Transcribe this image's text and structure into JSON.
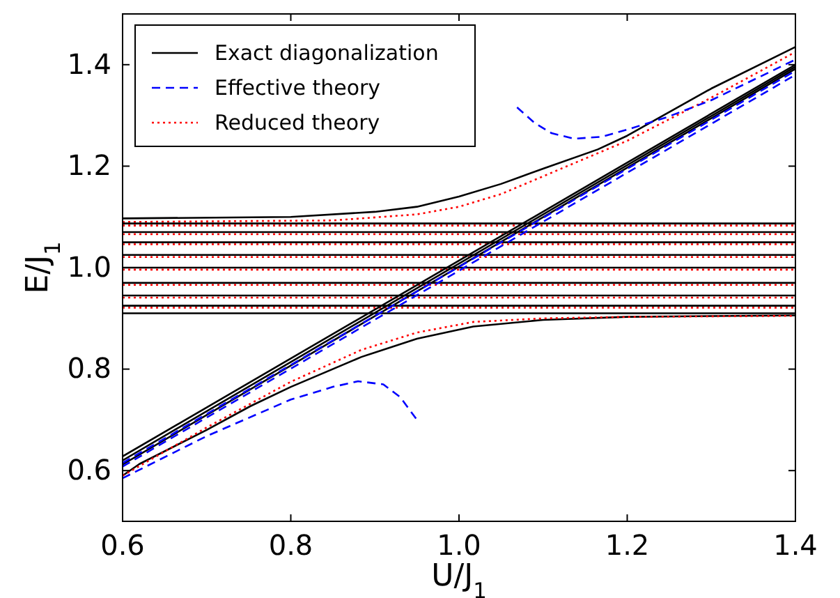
{
  "chart_data": {
    "type": "line",
    "xlabel": "U/J$_{1}$",
    "ylabel": "E/J$_{1}$",
    "xlim": [
      0.6,
      1.4
    ],
    "ylim": [
      0.5,
      1.5
    ],
    "xticks": [
      0.6,
      0.8,
      {
        "value": 1.0,
        "label": "1.0"
      },
      1.2,
      1.4
    ],
    "yticks": [
      0.6,
      0.8,
      {
        "value": 1.0,
        "label": "1.0"
      },
      1.2,
      1.4
    ],
    "legend": "top left",
    "grid": false,
    "series": [
      {
        "name": "Exact diagonalization",
        "color": "#000000",
        "line_style": "solid",
        "x": [
          0.6,
          0.8,
          0.9,
          0.95,
          1.0,
          1.05,
          1.1,
          1.165,
          1.2,
          1.3,
          1.4
        ],
        "values": [
          1.097,
          1.1,
          1.11,
          1.12,
          1.14,
          1.165,
          1.195,
          1.233,
          1.26,
          1.353,
          1.435
        ]
      },
      {
        "name": "Effective theory",
        "color": "#0000ff",
        "line_style": "dashed",
        "x": [
          0.6,
          0.7,
          0.8,
          0.85,
          0.88,
          0.91,
          0.93,
          0.95
        ],
        "values": [
          0.585,
          0.668,
          0.74,
          0.765,
          0.776,
          0.77,
          0.745,
          0.7
        ]
      },
      {
        "name": "Reduced theory",
        "color": "#ff0000",
        "line_style": "dotted",
        "x": [
          0.6,
          0.85,
          0.95,
          1.0,
          1.05,
          1.1,
          1.2,
          1.3,
          1.4
        ],
        "values": [
          1.09,
          1.093,
          1.105,
          1.12,
          1.145,
          1.18,
          1.25,
          1.335,
          1.425
        ]
      },
      {
        "color": "#000000",
        "line_style": "solid",
        "x": [
          0.6,
          0.62,
          0.7,
          0.752,
          0.8,
          0.884,
          0.95,
          1.017,
          1.1,
          1.2,
          1.4
        ],
        "values": [
          0.59,
          0.613,
          0.68,
          0.727,
          0.765,
          0.824,
          0.86,
          0.884,
          0.897,
          0.903,
          0.906
        ]
      },
      {
        "color": "#ff0000",
        "line_style": "dotted",
        "x": [
          0.6,
          0.7,
          0.8,
          0.884,
          0.95,
          1.017,
          1.1,
          1.2,
          1.4
        ],
        "values": [
          0.59,
          0.685,
          0.775,
          0.838,
          0.872,
          0.893,
          0.9,
          0.903,
          0.905
        ]
      },
      {
        "color": "#0000ff",
        "line_style": "dashed",
        "x": [
          1.069,
          1.09,
          1.11,
          1.137,
          1.17,
          1.2,
          1.248,
          1.3,
          1.4
        ],
        "values": [
          1.316,
          1.285,
          1.265,
          1.254,
          1.258,
          1.272,
          1.297,
          1.33,
          1.41
        ]
      },
      {
        "color": "#000000",
        "line_style": "solid",
        "x": [
          0.6,
          1.4
        ],
        "values": [
          1.087,
          1.087
        ]
      },
      {
        "color": "#000000",
        "line_style": "solid",
        "x": [
          0.6,
          1.4
        ],
        "values": [
          1.07,
          1.07
        ]
      },
      {
        "color": "#000000",
        "line_style": "solid",
        "x": [
          0.6,
          1.4
        ],
        "values": [
          1.05,
          1.05
        ]
      },
      {
        "color": "#000000",
        "line_style": "solid",
        "x": [
          0.6,
          1.4
        ],
        "values": [
          1.025,
          1.025
        ]
      },
      {
        "color": "#000000",
        "line_style": "solid",
        "x": [
          0.6,
          1.4
        ],
        "values": [
          1.0,
          1.0
        ]
      },
      {
        "color": "#000000",
        "line_style": "solid",
        "x": [
          0.6,
          1.4
        ],
        "values": [
          0.97,
          0.97
        ]
      },
      {
        "color": "#000000",
        "line_style": "solid",
        "x": [
          0.6,
          1.4
        ],
        "values": [
          0.945,
          0.945
        ]
      },
      {
        "color": "#000000",
        "line_style": "solid",
        "x": [
          0.6,
          1.4
        ],
        "values": [
          0.925,
          0.925
        ]
      },
      {
        "color": "#000000",
        "line_style": "solid",
        "x": [
          0.6,
          1.4
        ],
        "values": [
          0.91,
          0.91
        ]
      },
      {
        "color": "#ff0000",
        "line_style": "dotted",
        "x": [
          0.6,
          1.4
        ],
        "values": [
          1.083,
          1.083
        ]
      },
      {
        "color": "#ff0000",
        "line_style": "dotted",
        "x": [
          0.6,
          1.4
        ],
        "values": [
          1.066,
          1.066
        ]
      },
      {
        "color": "#ff0000",
        "line_style": "dotted",
        "x": [
          0.6,
          1.4
        ],
        "values": [
          1.046,
          1.046
        ]
      },
      {
        "color": "#ff0000",
        "line_style": "dotted",
        "x": [
          0.6,
          1.4
        ],
        "values": [
          1.021,
          1.021
        ]
      },
      {
        "color": "#ff0000",
        "line_style": "dotted",
        "x": [
          0.6,
          1.4
        ],
        "values": [
          0.996,
          0.996
        ]
      },
      {
        "color": "#ff0000",
        "line_style": "dotted",
        "x": [
          0.6,
          1.4
        ],
        "values": [
          0.966,
          0.966
        ]
      },
      {
        "color": "#ff0000",
        "line_style": "dotted",
        "x": [
          0.6,
          1.4
        ],
        "values": [
          0.941,
          0.941
        ]
      },
      {
        "color": "#ff0000",
        "line_style": "dotted",
        "x": [
          0.6,
          1.4
        ],
        "values": [
          0.921,
          0.921
        ]
      },
      {
        "color": "#000000",
        "line_style": "solid",
        "x": [
          0.6,
          1.4
        ],
        "values": [
          0.628,
          1.4
        ]
      },
      {
        "color": "#000000",
        "line_style": "solid",
        "x": [
          0.6,
          1.4
        ],
        "values": [
          0.62,
          1.396
        ]
      },
      {
        "color": "#000000",
        "line_style": "solid",
        "x": [
          0.6,
          1.4
        ],
        "values": [
          0.612,
          1.392
        ]
      },
      {
        "color": "#0000ff",
        "line_style": "dashed",
        "x": [
          0.6,
          1.4
        ],
        "values": [
          0.608,
          1.38
        ]
      },
      {
        "color": "#0000ff",
        "line_style": "dashed",
        "x": [
          0.6,
          1.4
        ],
        "values": [
          0.615,
          1.388
        ]
      }
    ]
  }
}
